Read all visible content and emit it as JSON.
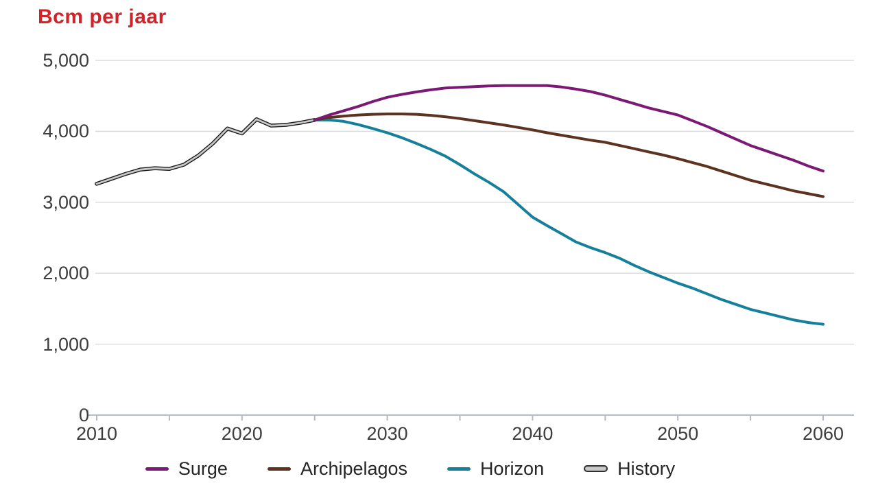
{
  "header": {
    "title": "Bcm per jaar",
    "title_color": "#d0232a"
  },
  "axes": {
    "grid_color": "#dcdcdc",
    "axis_color": "#b5bbc7",
    "label_color": "#3d3d3d"
  },
  "chart_data": {
    "type": "line",
    "title": "Bcm per jaar",
    "xlabel": "",
    "ylabel": "Bcm per jaar",
    "xlim": [
      2010,
      2060
    ],
    "ylim": [
      0,
      5000
    ],
    "grid": "horizontal",
    "legend_position": "bottom",
    "x_ticks_labeled": [
      2010,
      2020,
      2030,
      2040,
      2050,
      2060
    ],
    "x_tick_labels": [
      "2010",
      "2020",
      "2030",
      "2040",
      "2050",
      "2060"
    ],
    "x_ticks_minor": [
      2015,
      2025,
      2035,
      2045,
      2055
    ],
    "y_ticks": [
      0,
      1000,
      2000,
      3000,
      4000,
      5000
    ],
    "y_tick_labels": [
      "0",
      "1,000",
      "2,000",
      "3,000",
      "4,000",
      "5,000"
    ],
    "series": [
      {
        "name": "Surge",
        "color": "#7b1a74",
        "points": [
          [
            2025,
            4160
          ],
          [
            2026,
            4230
          ],
          [
            2027,
            4290
          ],
          [
            2028,
            4350
          ],
          [
            2029,
            4420
          ],
          [
            2030,
            4480
          ],
          [
            2031,
            4520
          ],
          [
            2032,
            4555
          ],
          [
            2033,
            4585
          ],
          [
            2034,
            4610
          ],
          [
            2035,
            4620
          ],
          [
            2036,
            4630
          ],
          [
            2037,
            4640
          ],
          [
            2038,
            4645
          ],
          [
            2039,
            4645
          ],
          [
            2040,
            4645
          ],
          [
            2041,
            4645
          ],
          [
            2042,
            4625
          ],
          [
            2043,
            4595
          ],
          [
            2044,
            4560
          ],
          [
            2045,
            4510
          ],
          [
            2046,
            4450
          ],
          [
            2047,
            4390
          ],
          [
            2048,
            4330
          ],
          [
            2049,
            4280
          ],
          [
            2050,
            4230
          ],
          [
            2051,
            4150
          ],
          [
            2052,
            4070
          ],
          [
            2053,
            3980
          ],
          [
            2054,
            3890
          ],
          [
            2055,
            3800
          ],
          [
            2056,
            3730
          ],
          [
            2057,
            3660
          ],
          [
            2058,
            3590
          ],
          [
            2059,
            3510
          ],
          [
            2060,
            3440
          ]
        ]
      },
      {
        "name": "Archipelagos",
        "color": "#5c3220",
        "points": [
          [
            2025,
            4160
          ],
          [
            2026,
            4195
          ],
          [
            2027,
            4215
          ],
          [
            2028,
            4230
          ],
          [
            2029,
            4240
          ],
          [
            2030,
            4245
          ],
          [
            2031,
            4245
          ],
          [
            2032,
            4240
          ],
          [
            2033,
            4225
          ],
          [
            2034,
            4205
          ],
          [
            2035,
            4180
          ],
          [
            2036,
            4150
          ],
          [
            2037,
            4120
          ],
          [
            2038,
            4090
          ],
          [
            2039,
            4055
          ],
          [
            2040,
            4020
          ],
          [
            2041,
            3980
          ],
          [
            2042,
            3945
          ],
          [
            2043,
            3910
          ],
          [
            2044,
            3875
          ],
          [
            2045,
            3845
          ],
          [
            2046,
            3800
          ],
          [
            2047,
            3755
          ],
          [
            2048,
            3710
          ],
          [
            2049,
            3665
          ],
          [
            2050,
            3615
          ],
          [
            2051,
            3560
          ],
          [
            2052,
            3505
          ],
          [
            2053,
            3440
          ],
          [
            2054,
            3375
          ],
          [
            2055,
            3310
          ],
          [
            2056,
            3260
          ],
          [
            2057,
            3210
          ],
          [
            2058,
            3160
          ],
          [
            2059,
            3120
          ],
          [
            2060,
            3080
          ]
        ]
      },
      {
        "name": "Horizon",
        "color": "#16809b",
        "points": [
          [
            2025,
            4160
          ],
          [
            2026,
            4160
          ],
          [
            2027,
            4140
          ],
          [
            2028,
            4095
          ],
          [
            2029,
            4040
          ],
          [
            2030,
            3980
          ],
          [
            2031,
            3910
          ],
          [
            2032,
            3830
          ],
          [
            2033,
            3745
          ],
          [
            2034,
            3650
          ],
          [
            2035,
            3530
          ],
          [
            2036,
            3400
          ],
          [
            2037,
            3280
          ],
          [
            2038,
            3150
          ],
          [
            2039,
            2970
          ],
          [
            2040,
            2790
          ],
          [
            2041,
            2670
          ],
          [
            2042,
            2555
          ],
          [
            2043,
            2440
          ],
          [
            2044,
            2360
          ],
          [
            2045,
            2290
          ],
          [
            2046,
            2210
          ],
          [
            2047,
            2110
          ],
          [
            2048,
            2020
          ],
          [
            2049,
            1940
          ],
          [
            2050,
            1860
          ],
          [
            2051,
            1790
          ],
          [
            2052,
            1710
          ],
          [
            2053,
            1630
          ],
          [
            2054,
            1560
          ],
          [
            2055,
            1490
          ],
          [
            2056,
            1440
          ],
          [
            2057,
            1390
          ],
          [
            2058,
            1340
          ],
          [
            2059,
            1305
          ],
          [
            2060,
            1280
          ]
        ]
      },
      {
        "name": "History",
        "color": "#c9c9c9",
        "outline_color": "#1b1b1b",
        "points": [
          [
            2010,
            3260
          ],
          [
            2011,
            3330
          ],
          [
            2012,
            3400
          ],
          [
            2013,
            3460
          ],
          [
            2014,
            3480
          ],
          [
            2015,
            3470
          ],
          [
            2016,
            3530
          ],
          [
            2017,
            3660
          ],
          [
            2018,
            3830
          ],
          [
            2019,
            4040
          ],
          [
            2020,
            3970
          ],
          [
            2021,
            4170
          ],
          [
            2022,
            4080
          ],
          [
            2023,
            4090
          ],
          [
            2024,
            4120
          ],
          [
            2025,
            4160
          ]
        ]
      }
    ]
  }
}
